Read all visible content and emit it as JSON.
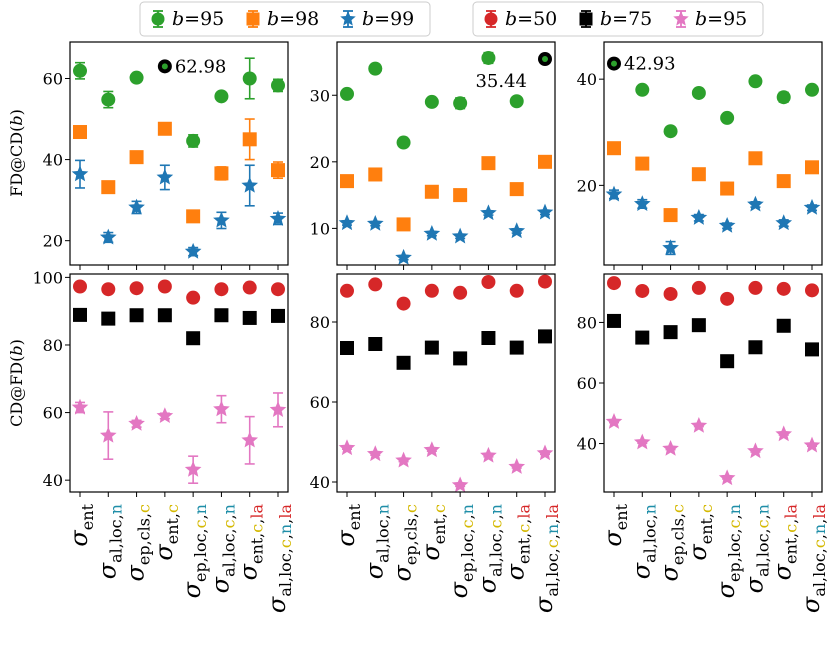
{
  "legend_top": {
    "left": [
      {
        "name_prefix": "b",
        "name": "=95",
        "color": "#2ca02c",
        "marker": "circle"
      },
      {
        "name_prefix": "b",
        "name": "=98",
        "color": "#ff7f0e",
        "marker": "square"
      },
      {
        "name_prefix": "b",
        "name": "=99",
        "color": "#1f77b4",
        "marker": "star"
      }
    ],
    "right": [
      {
        "name_prefix": "b",
        "name": "=50",
        "color": "#d62728",
        "marker": "circle"
      },
      {
        "name_prefix": "b",
        "name": "=75",
        "color": "#000000",
        "marker": "square"
      },
      {
        "name_prefix": "b",
        "name": "=95",
        "color": "#e377c2",
        "marker": "star"
      }
    ]
  },
  "colors": {
    "c": "#d4b800",
    "n": "#1f8ea8",
    "la": "#d62728"
  },
  "ylabels": {
    "top": "FD@CD(b)",
    "bottom": "CD@FD(b)"
  },
  "xticklabels": [
    {
      "base": "ent",
      "parts": []
    },
    {
      "base": "al,loc,",
      "parts": [
        {
          "t": "n",
          "c": "n"
        }
      ]
    },
    {
      "base": "ep,cls,",
      "parts": [
        {
          "t": "c",
          "c": "c"
        }
      ]
    },
    {
      "base": "ent,",
      "parts": [
        {
          "t": "c",
          "c": "c"
        }
      ]
    },
    {
      "base": "ep,loc,",
      "parts": [
        {
          "t": "c",
          "c": "c"
        },
        {
          "t": ",",
          "c": ""
        },
        {
          "t": "n",
          "c": "n"
        }
      ]
    },
    {
      "base": "al,loc,",
      "parts": [
        {
          "t": "c",
          "c": "c"
        },
        {
          "t": ",",
          "c": ""
        },
        {
          "t": "n",
          "c": "n"
        }
      ]
    },
    {
      "base": "ent,",
      "parts": [
        {
          "t": "c",
          "c": "c"
        },
        {
          "t": ",",
          "c": ""
        },
        {
          "t": "la",
          "c": "la"
        }
      ]
    },
    {
      "base": "al,loc,",
      "parts": [
        {
          "t": "c",
          "c": "c"
        },
        {
          "t": ",",
          "c": ""
        },
        {
          "t": "n",
          "c": "n"
        },
        {
          "t": ",",
          "c": ""
        },
        {
          "t": "la",
          "c": "la"
        }
      ]
    }
  ],
  "chart_data": [
    {
      "type": "scatter",
      "panel": "top-left",
      "ylim": [
        14,
        69
      ],
      "yticks": [
        20,
        40,
        60
      ],
      "annotation": {
        "text": "62.98",
        "x": 3,
        "y": 62.98
      },
      "series": [
        {
          "name": "b=95",
          "color": "#2ca02c",
          "marker": "circle",
          "values": [
            61.9,
            54.8,
            60.2,
            63.0,
            44.6,
            55.6,
            60.0,
            58.3
          ],
          "errors": [
            2.0,
            2.0,
            0.8,
            1.0,
            1.5,
            0.8,
            5.0,
            1.5
          ]
        },
        {
          "name": "b=98",
          "color": "#ff7f0e",
          "marker": "square",
          "values": [
            46.8,
            33.2,
            40.6,
            47.6,
            26.0,
            36.6,
            45.0,
            37.4
          ],
          "errors": [
            1.2,
            1.0,
            0.8,
            0.8,
            0.8,
            1.6,
            5.0,
            2.0
          ]
        },
        {
          "name": "b=99",
          "color": "#1f77b4",
          "marker": "star",
          "values": [
            36.4,
            20.8,
            28.2,
            35.6,
            17.3,
            25.0,
            33.6,
            25.4
          ],
          "errors": [
            3.4,
            1.2,
            1.5,
            3.0,
            1.0,
            2.0,
            5.0,
            1.4
          ]
        }
      ]
    },
    {
      "type": "scatter",
      "panel": "top-middle",
      "ylim": [
        4.5,
        38
      ],
      "yticks": [
        10,
        20,
        30
      ],
      "annotation": {
        "text": "35.44",
        "x": 7,
        "y": 35.44
      },
      "series": [
        {
          "name": "b=95",
          "color": "#2ca02c",
          "marker": "circle",
          "values": [
            30.2,
            34.0,
            22.9,
            29.0,
            28.8,
            35.6,
            29.1,
            35.44
          ],
          "errors": [
            0.5,
            0.5,
            0.5,
            0.5,
            0.8,
            0.8,
            0.5,
            0.5
          ]
        },
        {
          "name": "b=98",
          "color": "#ff7f0e",
          "marker": "square",
          "values": [
            17.1,
            18.1,
            10.6,
            15.5,
            15.0,
            19.8,
            15.9,
            20.0
          ],
          "errors": [
            0.5,
            0.5,
            0.8,
            0.5,
            0.5,
            0.5,
            0.5,
            0.5
          ]
        },
        {
          "name": "b=99",
          "color": "#1f77b4",
          "marker": "star",
          "values": [
            10.8,
            10.7,
            5.6,
            9.2,
            8.8,
            12.3,
            9.6,
            12.4
          ],
          "errors": [
            0.3,
            0.3,
            0.3,
            0.3,
            0.3,
            0.3,
            0.3,
            0.3
          ]
        }
      ]
    },
    {
      "type": "scatter",
      "panel": "top-right",
      "ylim": [
        5,
        47
      ],
      "yticks": [
        20,
        40
      ],
      "annotation": {
        "text": "42.93",
        "x": 0,
        "y": 42.93
      },
      "series": [
        {
          "name": "b=95",
          "color": "#2ca02c",
          "marker": "circle",
          "values": [
            42.93,
            38.0,
            30.2,
            37.4,
            32.7,
            39.6,
            36.6,
            38.0
          ],
          "errors": [
            0.4,
            0.4,
            0.7,
            0.4,
            0.4,
            0.4,
            0.9,
            0.4
          ]
        },
        {
          "name": "b=98",
          "color": "#ff7f0e",
          "marker": "square",
          "values": [
            27.0,
            24.1,
            14.4,
            22.1,
            19.4,
            25.1,
            20.8,
            23.4
          ],
          "errors": [
            0.4,
            0.4,
            0.4,
            0.4,
            0.4,
            0.4,
            0.4,
            0.4
          ]
        },
        {
          "name": "b=99",
          "color": "#1f77b4",
          "marker": "star",
          "values": [
            18.3,
            16.5,
            8.2,
            13.9,
            12.4,
            16.4,
            12.9,
            15.8
          ],
          "errors": [
            0.8,
            0.8,
            1.2,
            0.6,
            0.5,
            0.5,
            0.6,
            0.5
          ]
        }
      ]
    },
    {
      "type": "scatter",
      "panel": "bottom-left",
      "ylim": [
        36.5,
        101
      ],
      "yticks": [
        40,
        60,
        80,
        100
      ],
      "series": [
        {
          "name": "b=50",
          "color": "#d62728",
          "marker": "circle",
          "values": [
            97.3,
            96.5,
            96.8,
            97.3,
            94.0,
            96.5,
            97.0,
            96.5
          ],
          "errors": [
            0.5,
            0.5,
            0.5,
            0.5,
            0.5,
            0.5,
            0.5,
            0.5
          ]
        },
        {
          "name": "b=75",
          "color": "#000000",
          "marker": "square",
          "values": [
            88.9,
            87.8,
            88.8,
            88.8,
            82.0,
            88.8,
            88.0,
            88.6
          ],
          "errors": [
            0.5,
            0.5,
            0.5,
            0.5,
            0.5,
            0.5,
            0.5,
            0.5
          ]
        },
        {
          "name": "b=95",
          "color": "#e377c2",
          "marker": "star",
          "values": [
            61.5,
            53.2,
            56.7,
            59.0,
            43.1,
            61.0,
            51.8,
            60.8
          ],
          "errors": [
            1.5,
            7.0,
            1.0,
            0.8,
            4.0,
            4.0,
            7.0,
            5.0
          ]
        }
      ]
    },
    {
      "type": "scatter",
      "panel": "bottom-middle",
      "ylim": [
        37.5,
        92
      ],
      "yticks": [
        40,
        60,
        80
      ],
      "series": [
        {
          "name": "b=50",
          "color": "#d62728",
          "marker": "circle",
          "values": [
            87.8,
            89.4,
            84.6,
            87.8,
            87.3,
            90.0,
            87.8,
            90.1
          ],
          "errors": [
            0.3,
            0.3,
            0.3,
            0.3,
            0.3,
            0.3,
            0.3,
            0.3
          ]
        },
        {
          "name": "b=75",
          "color": "#000000",
          "marker": "square",
          "values": [
            73.5,
            74.5,
            69.8,
            73.6,
            70.9,
            76.0,
            73.6,
            76.4
          ],
          "errors": [
            0.3,
            0.3,
            0.3,
            0.3,
            0.3,
            0.3,
            0.3,
            0.3
          ]
        },
        {
          "name": "b=95",
          "color": "#e377c2",
          "marker": "star",
          "values": [
            48.5,
            47.0,
            45.4,
            48.0,
            39.2,
            46.6,
            43.8,
            47.2
          ],
          "errors": [
            0.3,
            0.3,
            0.3,
            0.3,
            0.3,
            0.3,
            0.3,
            0.3
          ]
        }
      ]
    },
    {
      "type": "scatter",
      "panel": "bottom-right",
      "ylim": [
        24,
        96
      ],
      "yticks": [
        40,
        60,
        80
      ],
      "series": [
        {
          "name": "b=50",
          "color": "#d62728",
          "marker": "circle",
          "values": [
            93.0,
            90.4,
            89.4,
            91.4,
            87.8,
            91.4,
            91.1,
            90.6
          ],
          "errors": [
            0.3,
            0.3,
            0.3,
            0.3,
            0.3,
            0.3,
            0.3,
            0.3
          ]
        },
        {
          "name": "b=75",
          "color": "#000000",
          "marker": "square",
          "values": [
            80.5,
            75.0,
            76.8,
            79.1,
            67.2,
            71.8,
            78.9,
            71.1
          ],
          "errors": [
            0.3,
            0.3,
            0.3,
            0.3,
            0.3,
            0.3,
            0.3,
            0.3
          ]
        },
        {
          "name": "b=95",
          "color": "#e377c2",
          "marker": "star",
          "values": [
            47.2,
            40.4,
            38.3,
            45.9,
            28.6,
            37.5,
            43.1,
            39.4
          ],
          "errors": [
            0.3,
            0.3,
            0.3,
            0.3,
            0.3,
            0.3,
            0.3,
            0.3
          ]
        }
      ]
    }
  ]
}
